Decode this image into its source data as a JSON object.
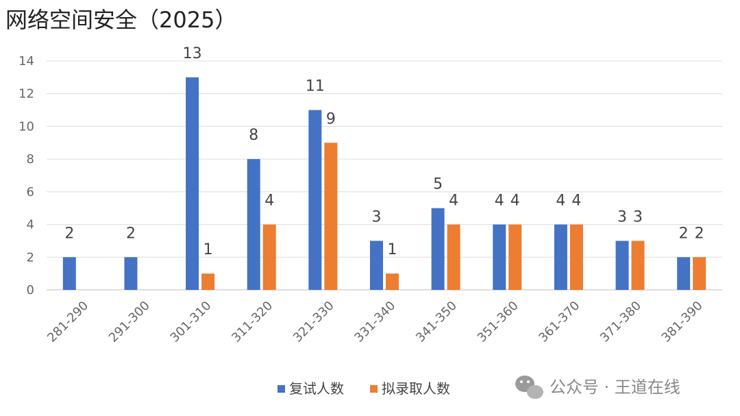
{
  "chart_data": {
    "type": "bar",
    "title": "网络空间安全（2025）",
    "categories": [
      "281-290",
      "291-300",
      "301-310",
      "311-320",
      "321-330",
      "331-340",
      "341-350",
      "351-360",
      "361-370",
      "371-380",
      "381-390"
    ],
    "series": [
      {
        "name": "复试人数",
        "color": "#4472C4",
        "values": [
          2,
          2,
          13,
          8,
          11,
          3,
          5,
          4,
          4,
          3,
          2
        ]
      },
      {
        "name": "拟录取人数",
        "color": "#ED7D31",
        "values": [
          null,
          null,
          1,
          4,
          9,
          1,
          4,
          4,
          4,
          3,
          2
        ]
      }
    ],
    "ylim": [
      0,
      14
    ],
    "yticks": [
      0,
      2,
      4,
      6,
      8,
      10,
      12,
      14
    ],
    "grid": true,
    "legend": "bottom-center",
    "xlabel": "",
    "ylabel": ""
  },
  "watermark": {
    "text": "公众号 · 王道在线",
    "icon": "wechat-icon"
  }
}
